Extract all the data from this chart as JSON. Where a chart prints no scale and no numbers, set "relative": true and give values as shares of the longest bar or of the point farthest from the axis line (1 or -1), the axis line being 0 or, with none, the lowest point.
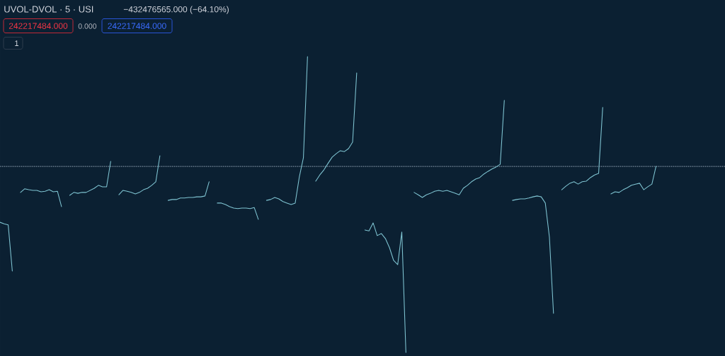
{
  "chart_data": {
    "type": "line",
    "title": "UVOL-DVOL · 5 · USI",
    "annotations": [
      "−432476565.000 (−64.10%)",
      "242217484.000",
      "0.000",
      "242217484.000",
      "1"
    ],
    "relative": true,
    "categories": [
      null,
      null,
      null,
      null,
      null,
      null,
      null,
      null,
      null,
      null,
      null,
      null,
      null,
      null,
      null,
      null,
      null,
      null,
      null,
      null,
      null,
      null,
      null,
      null,
      null,
      null,
      null,
      null,
      null,
      null,
      null,
      null,
      null,
      null,
      null,
      null,
      null,
      null,
      null,
      null,
      null,
      null,
      null,
      null,
      null,
      null,
      null,
      null,
      null,
      null,
      null,
      null,
      null,
      null,
      null,
      null,
      null,
      null,
      null,
      null,
      null,
      null,
      null,
      null,
      null,
      null,
      null,
      null,
      null,
      null,
      null,
      null,
      null,
      null,
      null,
      null,
      null,
      null,
      null,
      null,
      null,
      null,
      null,
      null,
      null,
      null,
      null,
      null,
      null,
      null,
      null,
      null,
      null,
      null,
      null,
      null,
      null,
      null,
      null,
      null,
      null,
      null,
      null,
      null,
      null,
      null,
      null,
      null,
      null,
      null,
      null,
      null,
      null,
      null,
      null,
      null,
      null,
      null,
      null,
      null,
      null,
      null,
      null,
      null,
      null,
      null,
      null,
      null,
      null,
      null,
      null,
      null,
      null,
      null,
      null,
      null,
      null,
      null,
      null,
      null,
      null,
      null,
      null,
      null,
      null,
      null,
      null,
      null,
      null,
      null,
      null,
      null,
      null,
      null,
      null,
      null,
      null,
      null,
      null,
      null,
      null,
      null,
      null,
      null,
      null,
      null,
      null,
      null,
      null,
      null,
      null,
      null,
      null,
      null,
      null,
      null,
      null,
      null
    ],
    "series": [
      {
        "color": "#9fb0bf",
        "line_style": "dotted",
        "values": [
          0.629,
          0.629,
          0.629,
          0.629,
          0.629,
          0.629,
          0.629,
          0.629,
          0.629,
          0.629,
          0.629,
          0.629,
          0.629,
          0.629,
          0.629,
          0.629,
          0.629,
          0.629,
          0.629,
          0.629,
          0.629,
          0.629,
          0.629,
          0.629,
          0.629,
          0.629,
          0.629,
          0.629,
          0.629,
          0.629,
          0.629,
          0.629,
          0.629,
          0.629,
          0.629,
          0.629,
          0.629,
          0.629,
          0.629,
          0.629,
          0.629,
          0.629,
          0.629,
          0.629,
          0.629,
          0.629,
          0.629,
          0.629,
          0.629,
          0.629,
          0.629,
          0.629,
          0.629,
          0.629,
          0.629,
          0.629,
          0.629,
          0.629,
          0.629,
          0.629,
          0.629,
          0.629,
          0.629,
          0.629,
          0.629,
          0.629,
          0.629,
          0.629,
          0.629,
          0.629,
          0.629,
          0.629,
          0.629,
          0.629,
          0.629,
          0.629,
          0.629,
          0.629,
          0.629,
          0.629,
          0.629,
          0.629,
          0.629,
          0.629,
          0.629,
          0.629,
          0.629,
          0.629,
          0.629,
          0.629,
          0.629,
          0.629,
          0.629,
          0.629,
          0.629,
          0.629,
          0.629,
          0.629,
          0.629,
          0.629,
          0.629,
          0.629,
          0.629,
          0.629,
          0.629,
          0.629,
          0.629,
          0.629,
          0.629,
          0.629,
          0.629,
          0.629,
          0.629,
          0.629,
          0.629,
          0.629,
          0.629,
          0.629,
          0.629,
          0.629,
          0.629,
          0.629,
          0.629,
          0.629,
          0.629,
          0.629,
          0.629,
          0.629,
          0.629,
          0.629,
          0.629,
          0.629,
          0.629,
          0.629,
          0.629,
          0.629,
          0.629,
          0.629,
          0.629,
          0.629,
          0.629,
          0.629,
          0.629,
          0.629,
          0.629,
          0.629,
          0.629,
          0.629,
          0.629,
          0.629,
          0.629,
          0.629,
          0.629,
          0.629,
          0.629,
          0.629,
          0.629,
          0.629,
          0.629,
          0.629,
          0.629,
          0.629,
          0.629,
          0.629,
          0.629,
          0.629,
          0.629,
          0.629,
          0.629,
          0.629,
          0.629,
          0.629,
          0.629,
          0.629,
          0.629,
          0.629,
          0.629,
          0.629
        ]
      },
      {
        "color": "#7fc4d2",
        "values": [
          0.44,
          0.435,
          0.431,
          0.275,
          null,
          0.541,
          0.553,
          0.55,
          0.548,
          0.548,
          0.543,
          0.545,
          0.55,
          0.543,
          0.545,
          0.493,
          null,
          0.531,
          0.541,
          0.538,
          0.541,
          0.541,
          0.548,
          0.555,
          0.565,
          0.56,
          0.56,
          0.646,
          null,
          0.533,
          0.548,
          0.545,
          0.541,
          0.536,
          0.541,
          0.55,
          0.555,
          0.565,
          0.577,
          0.665,
          null,
          0.514,
          0.517,
          0.517,
          0.522,
          0.522,
          0.524,
          0.524,
          0.526,
          0.526,
          0.529,
          0.577,
          null,
          0.505,
          0.505,
          0.5,
          0.493,
          0.488,
          0.486,
          0.488,
          0.488,
          0.486,
          0.49,
          0.45,
          null,
          0.514,
          0.517,
          0.524,
          0.519,
          0.51,
          0.505,
          0.5,
          0.505,
          0.593,
          0.658,
          1.0,
          null,
          0.579,
          0.6,
          0.617,
          0.639,
          0.66,
          0.672,
          0.682,
          0.679,
          0.689,
          0.711,
          0.945,
          null,
          0.414,
          0.411,
          0.438,
          0.395,
          0.402,
          0.385,
          0.354,
          0.311,
          0.297,
          0.407,
          0,
          null,
          0.541,
          0.533,
          0.524,
          0.533,
          0.538,
          0.545,
          0.548,
          0.545,
          0.548,
          0.543,
          0.538,
          0.533,
          0.555,
          0.565,
          0.577,
          0.586,
          0.591,
          0.603,
          0.612,
          0.62,
          0.627,
          0.636,
          0.852,
          null,
          0.514,
          0.517,
          0.519,
          0.519,
          0.522,
          0.526,
          0.529,
          0.526,
          0.505,
          0.39,
          0.132,
          null,
          0.55,
          0.562,
          0.572,
          0.577,
          0.569,
          0.577,
          0.579,
          0.591,
          0.6,
          0.605,
          0.828,
          null,
          0.536,
          0.543,
          0.541,
          0.55,
          0.557,
          0.565,
          0.569,
          0.572,
          0.55,
          0.56,
          0.569,
          0.629,
          null,
          null,
          null,
          null,
          null,
          null,
          null,
          null,
          null,
          null,
          null,
          null,
          null,
          null,
          null,
          null,
          null
        ]
      }
    ]
  }
}
